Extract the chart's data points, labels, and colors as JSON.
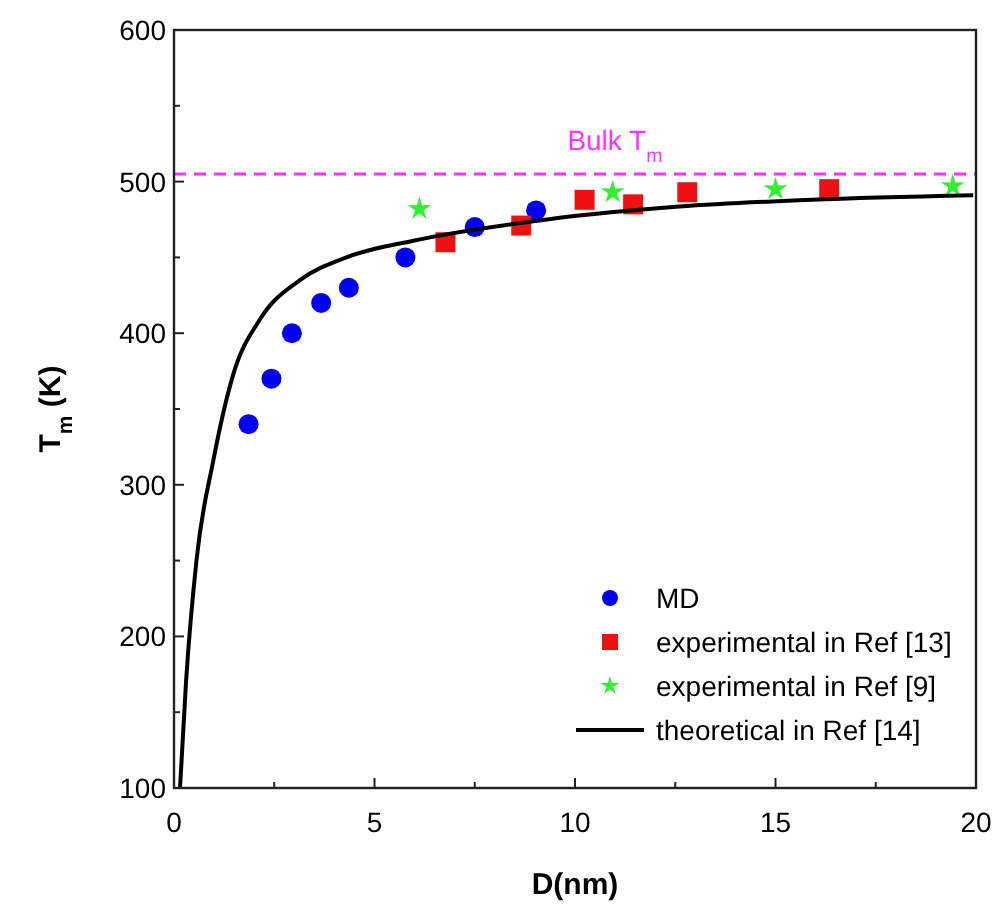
{
  "chart_data": {
    "type": "scatter",
    "xlabel": "D(nm)",
    "ylabel": "T$_{m}$ (K)",
    "xlim": [
      0,
      20
    ],
    "ylim": [
      100,
      600
    ],
    "xticks": [
      0,
      {
        "value": 2.5,
        "label": null
      },
      5,
      {
        "value": 7.5,
        "label": null
      },
      10,
      {
        "value": 12.5,
        "label": null
      },
      15,
      {
        "value": 17.5,
        "label": null
      },
      20
    ],
    "yticks": [
      100,
      {
        "value": 150,
        "label": null
      },
      200,
      {
        "value": 250,
        "label": null
      },
      300,
      {
        "value": 350,
        "label": null
      },
      400,
      {
        "value": 450,
        "label": null
      },
      500,
      {
        "value": 550,
        "label": null
      },
      600
    ],
    "legend": "bottom right",
    "grid": false,
    "ref_lines": [
      {
        "axis": "y",
        "value": 505,
        "label": "Bulk T$_{m}$",
        "color": "#ff33ff",
        "line_style": "dashed"
      }
    ],
    "series": [
      {
        "name": "MD",
        "color": "#0000ee",
        "marker": "circle",
        "x": [
          1.86,
          2.43,
          2.94,
          3.67,
          4.36,
          5.77,
          7.5,
          9.03
        ],
        "values": [
          340,
          370,
          400,
          420,
          430,
          450,
          470,
          481
        ]
      },
      {
        "name": "experimental in Ref [13]",
        "color": "#ee1111",
        "marker": "square",
        "x": [
          6.77,
          8.66,
          10.24,
          11.45,
          12.8,
          16.34
        ],
        "values": [
          460,
          471,
          488,
          485,
          493,
          495
        ]
      },
      {
        "name": "experimental in Ref [9]",
        "color": "#33ee33",
        "marker": "star",
        "x": [
          6.12,
          10.94,
          15.0,
          19.42
        ],
        "values": [
          482,
          493,
          495,
          497
        ]
      },
      {
        "name": "theoretical in Ref [14]",
        "type": "line",
        "color": "#000000",
        "marker": "none",
        "line_style": "solid",
        "x": [
          0.15,
          0.3,
          0.56,
          0.98,
          1.48,
          2.14,
          3.14,
          4.3,
          5.97,
          9.3,
          12.6,
          15.9,
          19.93
        ],
        "values": [
          100,
          170,
          250,
          316,
          373,
          409,
          435,
          450,
          461,
          475,
          483.5,
          488,
          491
        ]
      }
    ]
  }
}
